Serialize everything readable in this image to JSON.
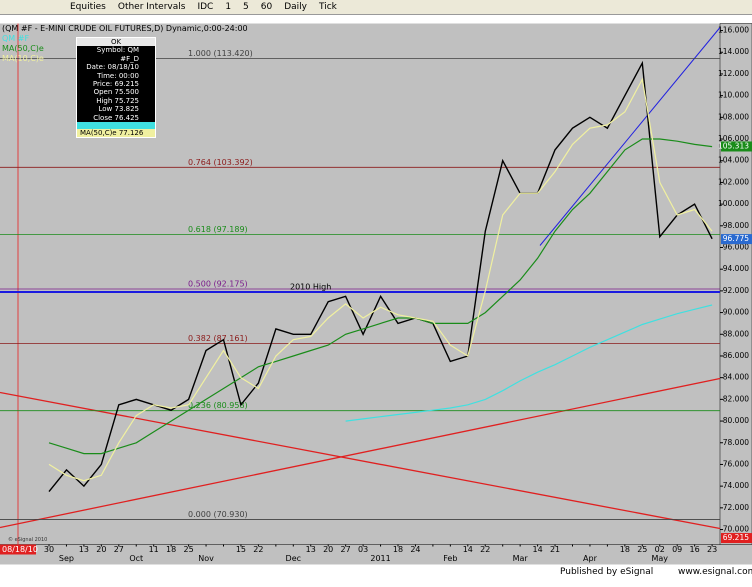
{
  "toolbar": {
    "items": [
      "Equities",
      "Other Intervals",
      "IDC",
      "1",
      "5",
      "60",
      "Daily",
      "Tick"
    ]
  },
  "chart_data": {
    "type": "line",
    "title": "(QM #F - E-MINI CRUDE OIL FUTURES,D) Dynamic,0:00-24:00",
    "categories": [
      "30",
      null,
      "13",
      "20",
      "27",
      null,
      "11",
      "18",
      "25",
      null,
      null,
      "15",
      "22",
      null,
      null,
      "13",
      "20",
      "27",
      "03",
      null,
      "18",
      "24",
      null,
      null,
      "14",
      "22",
      null,
      null,
      "14",
      "21",
      null,
      null,
      null,
      "18",
      "25",
      "02",
      "09",
      "16",
      "23"
    ],
    "month_labels": [
      null,
      "Sep",
      null,
      null,
      null,
      "Oct",
      null,
      null,
      null,
      "Nov",
      null,
      null,
      null,
      null,
      "Dec",
      null,
      null,
      null,
      null,
      "2011",
      null,
      null,
      null,
      "Feb",
      null,
      null,
      null,
      "Mar",
      null,
      null,
      null,
      "Apr",
      null,
      null,
      null,
      "May",
      null,
      null,
      null
    ],
    "series": [
      {
        "name": "QM #F",
        "color": "#000000",
        "values": [
          73.5,
          75.5,
          74,
          76,
          81.5,
          82,
          81.5,
          81,
          82,
          86.5,
          87.5,
          81.5,
          83.5,
          88.5,
          88,
          88,
          91,
          91.5,
          88,
          91.5,
          89,
          89.5,
          89,
          85.5,
          86,
          97.5,
          104,
          101,
          101,
          105,
          107,
          108,
          107,
          110,
          113,
          97,
          99,
          100,
          96.8
        ]
      },
      {
        "name": "MA(50,C)e",
        "color": "#1a8c1a",
        "values": [
          78,
          77.5,
          77,
          77,
          77.5,
          78,
          79,
          80,
          81,
          82,
          83,
          84,
          85,
          85.5,
          86,
          86.5,
          87,
          88,
          88.5,
          89,
          89.5,
          89.5,
          89,
          89,
          89,
          90,
          91.5,
          93,
          95,
          97.5,
          99.5,
          101,
          103,
          105,
          106,
          106,
          105.8,
          105.5,
          105.3
        ]
      },
      {
        "name": "MA(10,C)e",
        "color": "#f0f0a0",
        "values": [
          76,
          75,
          74.5,
          75,
          78,
          80.5,
          81.5,
          81.2,
          81.5,
          84,
          86.5,
          84,
          83,
          86,
          87.5,
          87.8,
          89.5,
          90.8,
          89.5,
          90.5,
          89.8,
          89.5,
          89.2,
          87,
          86,
          92,
          99,
          101,
          101,
          103,
          105.5,
          107,
          107.3,
          108.5,
          111.5,
          102,
          99,
          99.5,
          97.5
        ]
      },
      {
        "color": "#40e0e0",
        "values": [
          null,
          null,
          null,
          null,
          null,
          null,
          null,
          null,
          null,
          null,
          null,
          null,
          null,
          null,
          null,
          null,
          null,
          80,
          80.2,
          80.4,
          80.6,
          80.8,
          81,
          81.2,
          81.5,
          82,
          82.8,
          83.7,
          84.5,
          85.2,
          86,
          86.8,
          87.5,
          88.2,
          88.9,
          89.4,
          89.9,
          90.3,
          90.7
        ]
      }
    ],
    "levels": [
      {
        "label": "1.000 (113.420)",
        "value": 113.42,
        "color": "#404040"
      },
      {
        "label": "0.764 (103.392)",
        "value": 103.392,
        "color": "#8b1a1a"
      },
      {
        "label": "0.618 (97.189)",
        "value": 97.189,
        "color": "#1a8c1a"
      },
      {
        "label": "0.500 (92.175)",
        "value": 92.175,
        "color": "#7a1a8b"
      },
      {
        "label": "0.382 (87.161)",
        "value": 87.161,
        "color": "#8b1a1a"
      },
      {
        "label": "0.236 (80.958)",
        "value": 80.958,
        "color": "#1a8c1a"
      },
      {
        "label": "0.000 (70.930)",
        "value": 70.93,
        "color": "#404040"
      },
      {
        "label": "2010 High",
        "value": 91.893,
        "color": "#1a1ae0"
      }
    ],
    "price_tags": [
      {
        "label": "105.313",
        "value": 105.313,
        "color": "#1a8c1a"
      },
      {
        "label": "96.775",
        "value": 96.775,
        "color": "#2a6ad0"
      },
      {
        "label": "69.215",
        "value": 69.215,
        "color": "#e02020"
      }
    ],
    "ylim": [
      68.62,
      116.65
    ],
    "yticks": [
      {
        "value": 70,
        "label": "70.000"
      },
      {
        "value": 72,
        "label": "72.000"
      },
      {
        "value": 74,
        "label": "74.000"
      },
      {
        "value": 76,
        "label": "76.000"
      },
      {
        "value": 78,
        "label": "78.000"
      },
      {
        "value": 80,
        "label": "80.000"
      },
      {
        "value": 82,
        "label": "82.000"
      },
      {
        "value": 84,
        "label": "84.000"
      },
      {
        "value": 86,
        "label": "86.000"
      },
      {
        "value": 88,
        "label": "88.000"
      },
      {
        "value": 90,
        "label": "90.000"
      },
      {
        "value": 92,
        "label": "92.000"
      },
      {
        "value": 94,
        "label": "94.000"
      },
      {
        "value": 96,
        "label": "96.000"
      },
      {
        "value": 98,
        "label": "98.000"
      },
      {
        "value": 100,
        "label": "100.000"
      },
      {
        "value": 102,
        "label": "102.000"
      },
      {
        "value": 104,
        "label": "104.000"
      },
      {
        "value": 106,
        "label": "106.000"
      },
      {
        "value": 108,
        "label": "108.000"
      },
      {
        "value": 110,
        "label": "110.000"
      },
      {
        "value": 112,
        "label": "112.000"
      },
      {
        "value": 114,
        "label": "114.000"
      },
      {
        "value": 116,
        "label": "116.000"
      }
    ],
    "cursor_date": "08/18/10",
    "copyright": "© eSignal 2010"
  },
  "data_window": {
    "title": "OK",
    "rows": [
      "Symbol: QM #F_D",
      "Date: 08/18/10",
      "Time: 00:00",
      "Price: 69.215",
      "Open 75.500",
      "High 75.725",
      "Low 73.825",
      "Close 76.425"
    ],
    "ma_row": "MA(50,C)e 77.126"
  },
  "footer": {
    "left": "Published by eSignal",
    "right": "www.esignal.com"
  }
}
